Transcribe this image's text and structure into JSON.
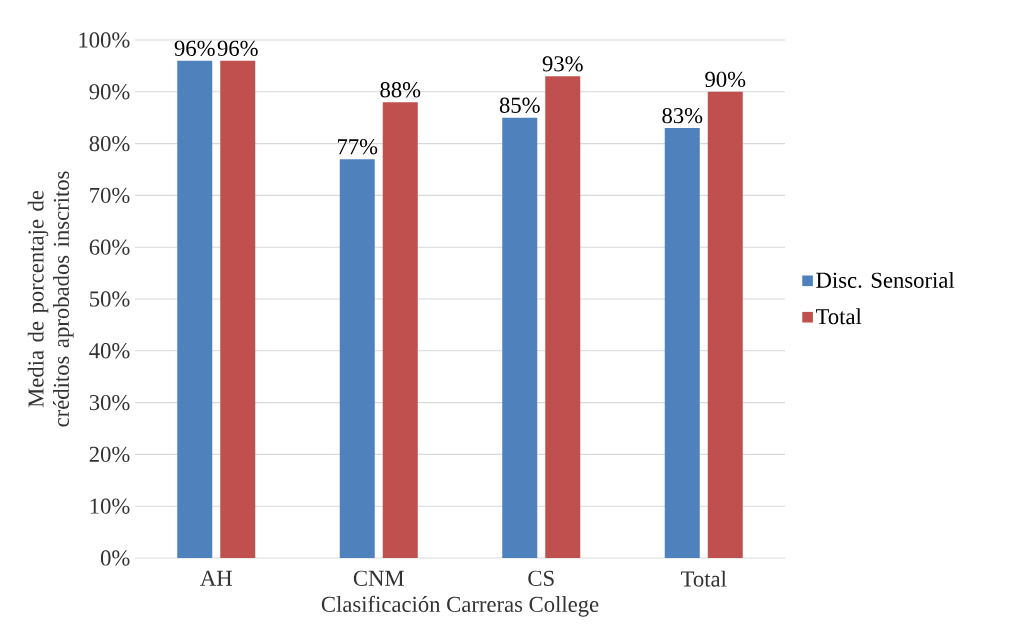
{
  "chart_data": {
    "type": "bar",
    "xlabel": "Clasificación Carreras College",
    "ylabel": "Media de porcentaje de créditos aprobados inscritos",
    "categories": [
      "AH",
      "CNM",
      "CS",
      "Total"
    ],
    "series": [
      {
        "name": "Disc. Sensorial",
        "color": "#4f81bd",
        "values": [
          96,
          77,
          85,
          83
        ],
        "value_labels": [
          "96%",
          "77%",
          "85%",
          "83%"
        ]
      },
      {
        "name": "Total",
        "color": "#c0504d",
        "values": [
          96,
          88,
          93,
          90
        ],
        "value_labels": [
          "96%",
          "88%",
          "93%",
          "90%"
        ]
      }
    ],
    "ylim": [
      0,
      100
    ],
    "yticks": [
      {
        "value": 0,
        "label": "0%"
      },
      {
        "value": 10,
        "label": "10%"
      },
      {
        "value": 20,
        "label": "20%"
      },
      {
        "value": 30,
        "label": "30%"
      },
      {
        "value": 40,
        "label": "40%"
      },
      {
        "value": 50,
        "label": "50%"
      },
      {
        "value": 60,
        "label": "60%"
      },
      {
        "value": 70,
        "label": "70%"
      },
      {
        "value": 80,
        "label": "80%"
      },
      {
        "value": 90,
        "label": "90%"
      },
      {
        "value": 100,
        "label": "100%"
      }
    ],
    "grid": "y",
    "legend": "right"
  }
}
